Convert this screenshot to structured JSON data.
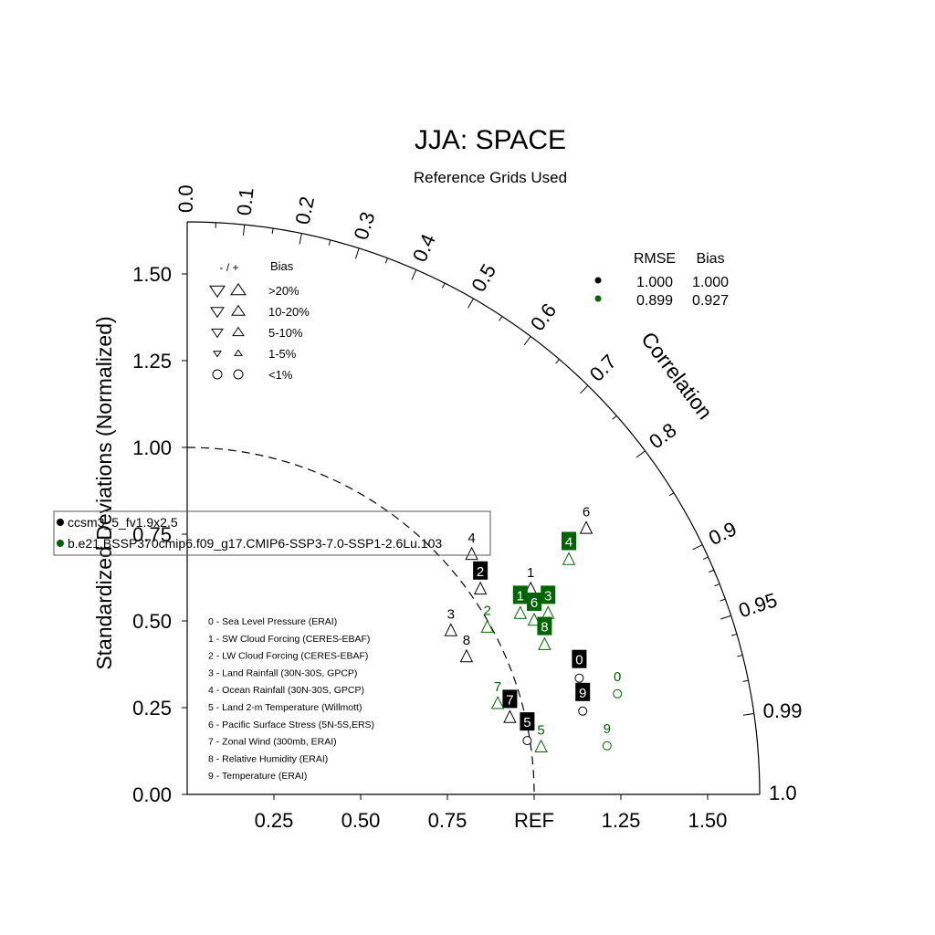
{
  "chart_data": {
    "type": "scatter",
    "subtype": "taylor-diagram",
    "title": "JJA: SPACE",
    "subtitle": "Reference Grids Used",
    "ylabel": "Standardized Deviations (Normalized)",
    "arc_label": "Correlation",
    "ref_label": "REF",
    "sd_range": [
      0,
      1.65
    ],
    "y_ticks": [
      "0.00",
      "0.25",
      "0.50",
      "0.75",
      "1.00",
      "1.25",
      "1.50"
    ],
    "x_ticks": [
      "0.25",
      "0.50",
      "0.75",
      "REF",
      "1.25",
      "1.50"
    ],
    "x_tick_values": [
      0.25,
      0.5,
      0.75,
      1.0,
      1.25,
      1.5
    ],
    "y_tick_values": [
      0,
      0.25,
      0.5,
      0.75,
      1.0,
      1.25,
      1.5
    ],
    "correlation_ticks": [
      "0.0",
      "0.1",
      "0.2",
      "0.3",
      "0.4",
      "0.5",
      "0.6",
      "0.7",
      "0.8",
      "0.9",
      "0.95",
      "0.99",
      "1.0"
    ],
    "correlation_tick_values": [
      0,
      0.1,
      0.2,
      0.3,
      0.4,
      0.5,
      0.6,
      0.7,
      0.8,
      0.9,
      0.95,
      0.99,
      1.0
    ],
    "ref_circle_radius": 1.0,
    "series": [
      {
        "name": "ccsm3_5_fv1.9x2.5",
        "color": "#000000",
        "rmse": "1.000",
        "bias": "1.000",
        "points": [
          {
            "id": "0",
            "x": 1.13,
            "y": 0.335,
            "marker": "circle",
            "label_style": "box"
          },
          {
            "id": "1",
            "x": 0.99,
            "y": 0.59,
            "marker": "up",
            "label_style": "plain"
          },
          {
            "id": "2",
            "x": 0.845,
            "y": 0.59,
            "marker": "up",
            "label_style": "box"
          },
          {
            "id": "3",
            "x": 0.76,
            "y": 0.47,
            "marker": "up",
            "label_style": "plain"
          },
          {
            "id": "4",
            "x": 0.82,
            "y": 0.69,
            "marker": "up",
            "label_style": "plain"
          },
          {
            "id": "5",
            "x": 0.98,
            "y": 0.155,
            "marker": "circle",
            "label_style": "box"
          },
          {
            "id": "6",
            "x": 1.15,
            "y": 0.765,
            "marker": "up",
            "label_style": "plain"
          },
          {
            "id": "7",
            "x": 0.93,
            "y": 0.22,
            "marker": "up",
            "label_style": "box"
          },
          {
            "id": "8",
            "x": 0.805,
            "y": 0.395,
            "marker": "up",
            "label_style": "plain"
          },
          {
            "id": "9",
            "x": 1.14,
            "y": 0.24,
            "marker": "circle",
            "label_style": "box"
          }
        ]
      },
      {
        "name": "b.e21.BSSP370cmip6.f09_g17.CMIP6-SSP3-7.0-SSP1-2.6Lu.103",
        "color": "#006400",
        "rmse": "0.899",
        "bias": "0.927",
        "points": [
          {
            "id": "0",
            "x": 1.24,
            "y": 0.29,
            "marker": "circle",
            "label_style": "plain"
          },
          {
            "id": "1",
            "x": 0.96,
            "y": 0.52,
            "marker": "up",
            "label_style": "box"
          },
          {
            "id": "2",
            "x": 0.865,
            "y": 0.48,
            "marker": "up",
            "label_style": "plain"
          },
          {
            "id": "3",
            "x": 1.04,
            "y": 0.52,
            "marker": "up",
            "label_style": "box"
          },
          {
            "id": "4",
            "x": 1.1,
            "y": 0.675,
            "marker": "up",
            "label_style": "box"
          },
          {
            "id": "5",
            "x": 1.02,
            "y": 0.135,
            "marker": "up",
            "label_style": "plain"
          },
          {
            "id": "6",
            "x": 1.0,
            "y": 0.5,
            "marker": "up",
            "label_style": "box"
          },
          {
            "id": "7",
            "x": 0.895,
            "y": 0.26,
            "marker": "up",
            "label_style": "plain"
          },
          {
            "id": "8",
            "x": 1.03,
            "y": 0.43,
            "marker": "up",
            "label_style": "box"
          },
          {
            "id": "9",
            "x": 1.21,
            "y": 0.14,
            "marker": "circle",
            "label_style": "plain"
          }
        ]
      }
    ],
    "variables": [
      "0 - Sea Level Pressure (ERAI)",
      "1 - SW Cloud Forcing (CERES-EBAF)",
      "2 - LW Cloud Forcing (CERES-EBAF)",
      "3 - Land Rainfall (30N-30S, GPCP)",
      "4 - Ocean Rainfall (30N-30S, GPCP)",
      "5 - Land 2-m Temperature (Willmott)",
      "6 - Pacific Surface Stress (5N-5S,ERS)",
      "7 - Zonal Wind (300mb, ERAI)",
      "8 - Relative Humidity (ERAI)",
      "9 - Temperature (ERAI)"
    ],
    "bias_legend": {
      "header_sign": "- / +",
      "header_title": "Bias",
      "rows": [
        {
          "label": ">20%",
          "size": "xl",
          "shape": "triangle"
        },
        {
          "label": "10-20%",
          "size": "l",
          "shape": "triangle"
        },
        {
          "label": "5-10%",
          "size": "m",
          "shape": "triangle"
        },
        {
          "label": "1-5%",
          "size": "s",
          "shape": "triangle"
        },
        {
          "label": "<1%",
          "size": "m",
          "shape": "circle"
        }
      ]
    },
    "stats_legend": {
      "col1": "RMSE",
      "col2": "Bias"
    }
  }
}
